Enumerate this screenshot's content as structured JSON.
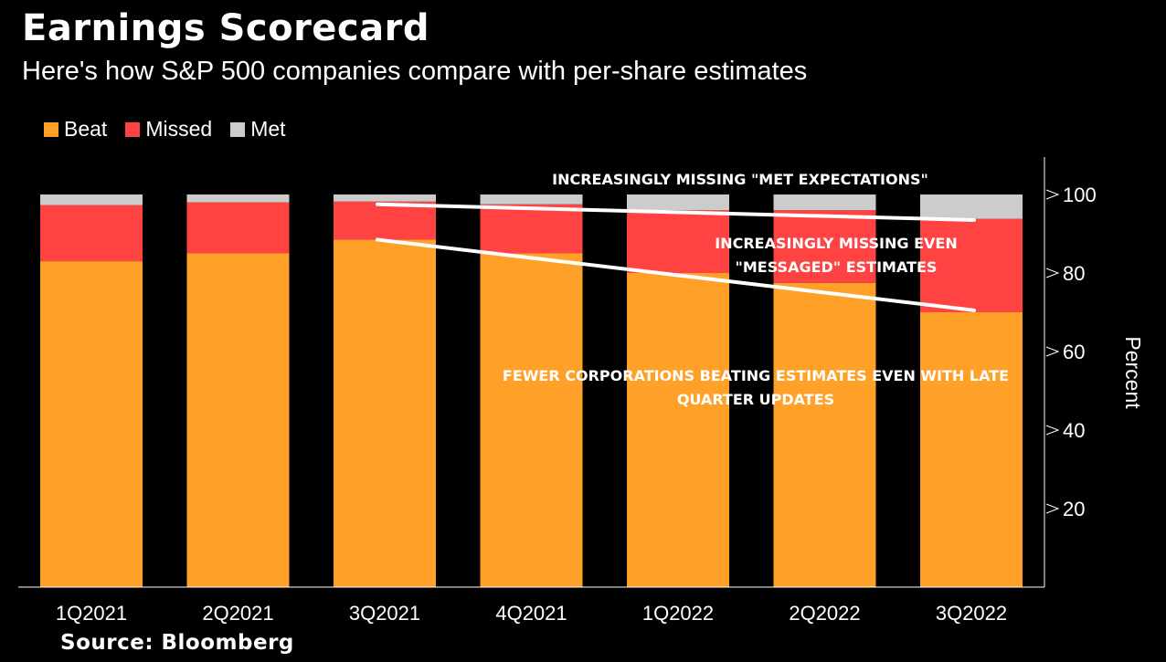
{
  "title": "Earnings Scorecard",
  "subtitle": "Here's how S&P 500 companies compare with per-share estimates",
  "source": "Source: Bloomberg",
  "colors": {
    "beat": "#FFA128",
    "missed": "#FF4343",
    "met": "#CCCCCC",
    "background": "#000000"
  },
  "annotations": {
    "met": "INCREASINGLY MISSING \"MET EXPECTATIONS\"",
    "missed_line1": "INCREASINGLY MISSING EVEN",
    "missed_line2": "\"MESSAGED\" ESTIMATES",
    "beat_line1": "FEWER CORPORATIONS BEATING ESTIMATES EVEN WITH LATE",
    "beat_line2": "QUARTER UPDATES"
  },
  "chart_data": {
    "type": "bar",
    "stacked": true,
    "categories": [
      "1Q2021",
      "2Q2021",
      "3Q2021",
      "4Q2021",
      "1Q2022",
      "2Q2022",
      "3Q2022"
    ],
    "series": [
      {
        "name": "Beat",
        "values": [
          83,
          85,
          88.5,
          85,
          80,
          77.5,
          70
        ]
      },
      {
        "name": "Missed",
        "values": [
          14.3,
          13,
          9.7,
          12.5,
          16,
          18.5,
          23.8
        ]
      },
      {
        "name": "Met",
        "values": [
          2.7,
          2,
          1.8,
          2.5,
          4,
          4,
          6.2
        ]
      }
    ],
    "ylabel": "Percent",
    "yticks": [
      20,
      40,
      60,
      80,
      100
    ],
    "ylim": [
      0,
      110
    ],
    "legend": "top-left",
    "grid": false,
    "trend_lines": [
      {
        "series": "Missed top",
        "from": [
          "3Q2021",
          97.5
        ],
        "to": [
          "3Q2022",
          93.5
        ]
      },
      {
        "series": "Beat top",
        "from": [
          "3Q2021",
          88.5
        ],
        "to": [
          "3Q2022",
          70.5
        ]
      }
    ]
  }
}
